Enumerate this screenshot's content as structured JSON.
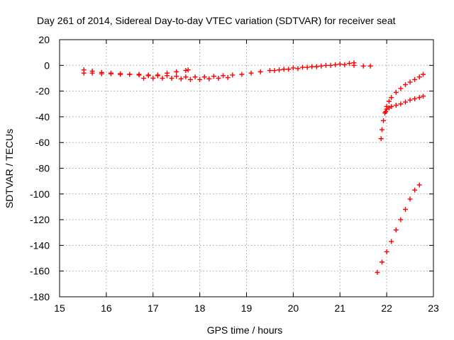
{
  "chart_data": {
    "type": "scatter",
    "title": "Day 261 of 2014, Sidereal Day-to-day VTEC variation (SDTVAR) for receiver seat",
    "xlabel": "GPS time / hours",
    "ylabel": "SDTVAR / TECUs",
    "xlim": [
      15,
      23
    ],
    "ylim": [
      -180,
      20
    ],
    "xticks": [
      "15",
      "16",
      "17",
      "18",
      "19",
      "20",
      "21",
      "22",
      "23"
    ],
    "yticks": [
      "20",
      "0",
      "-20",
      "-40",
      "-60",
      "-80",
      "-100",
      "-120",
      "-140",
      "-160",
      "-180"
    ],
    "grid": true,
    "marker": "plus",
    "color": "#ff0000",
    "series": [
      {
        "x": [
          15.52,
          15.7,
          15.9,
          16.1,
          16.3,
          16.5,
          16.7,
          16.9,
          17.1,
          17.3,
          17.5,
          17.7,
          17.9,
          18.1,
          18.3,
          18.5,
          18.7,
          18.9,
          19.1,
          19.3,
          19.5,
          19.7,
          19.9,
          20.1,
          20.3,
          20.5,
          20.7,
          20.9,
          21.1,
          21.3,
          21.5,
          21.65
        ],
        "y": [
          -6,
          -6,
          -6.5,
          -6.5,
          -7,
          -7,
          -7,
          -7.5,
          -8,
          -8,
          -8.5,
          -9,
          -9,
          -9,
          -8.5,
          -8,
          -7.5,
          -7,
          -6,
          -5,
          -4,
          -3.5,
          -3,
          -2.5,
          -1.5,
          -1,
          0,
          0.5,
          0.5,
          0,
          -0.5,
          -0.5
        ]
      },
      {
        "x": [
          15.52,
          15.7,
          15.9,
          16.1,
          16.3,
          16.5,
          16.7,
          16.9,
          17.1,
          17.3,
          17.5,
          17.7,
          17.75
        ],
        "y": [
          -3.5,
          -4.5,
          -5.5,
          -6,
          -6.5,
          -7,
          -7.5,
          -8,
          -7.5,
          -6,
          -5,
          -4,
          -3.5
        ]
      },
      {
        "x": [
          16.8,
          17.0,
          17.2,
          17.4,
          17.6,
          17.8,
          18.0,
          18.2,
          18.4,
          18.6
        ],
        "y": [
          -10,
          -10,
          -10,
          -10,
          -10.5,
          -11,
          -11,
          -10.5,
          -10,
          -9.5
        ]
      },
      {
        "x": [
          19.6,
          19.8,
          20.0,
          20.2,
          20.4,
          20.6,
          20.8,
          21.0,
          21.2,
          21.3
        ],
        "y": [
          -4,
          -3,
          -2,
          -1.5,
          -1,
          -0.5,
          0,
          1,
          1.5,
          2
        ]
      },
      {
        "x": [
          21.88,
          21.9,
          21.93,
          21.96,
          22.0,
          22.05,
          22.1,
          22.2,
          22.3,
          22.4,
          22.5,
          22.6,
          22.7,
          22.78
        ],
        "y": [
          -57,
          -50,
          -43,
          -37,
          -32,
          -28,
          -25,
          -21,
          -18,
          -15,
          -13,
          -11,
          -9,
          -7
        ]
      },
      {
        "x": [
          21.98,
          22.0,
          22.05,
          22.1,
          22.2,
          22.3,
          22.4,
          22.5,
          22.6,
          22.7,
          22.78
        ],
        "y": [
          -36,
          -34,
          -33,
          -32,
          -31,
          -30,
          -28.5,
          -27,
          -26,
          -25,
          -24
        ]
      },
      {
        "x": [
          21.8,
          21.9,
          22.0,
          22.1,
          22.2,
          22.3,
          22.4,
          22.5,
          22.6,
          22.7
        ],
        "y": [
          -161,
          -153,
          -145,
          -137,
          -128,
          -120,
          -112,
          -104,
          -97,
          -93
        ]
      }
    ]
  }
}
